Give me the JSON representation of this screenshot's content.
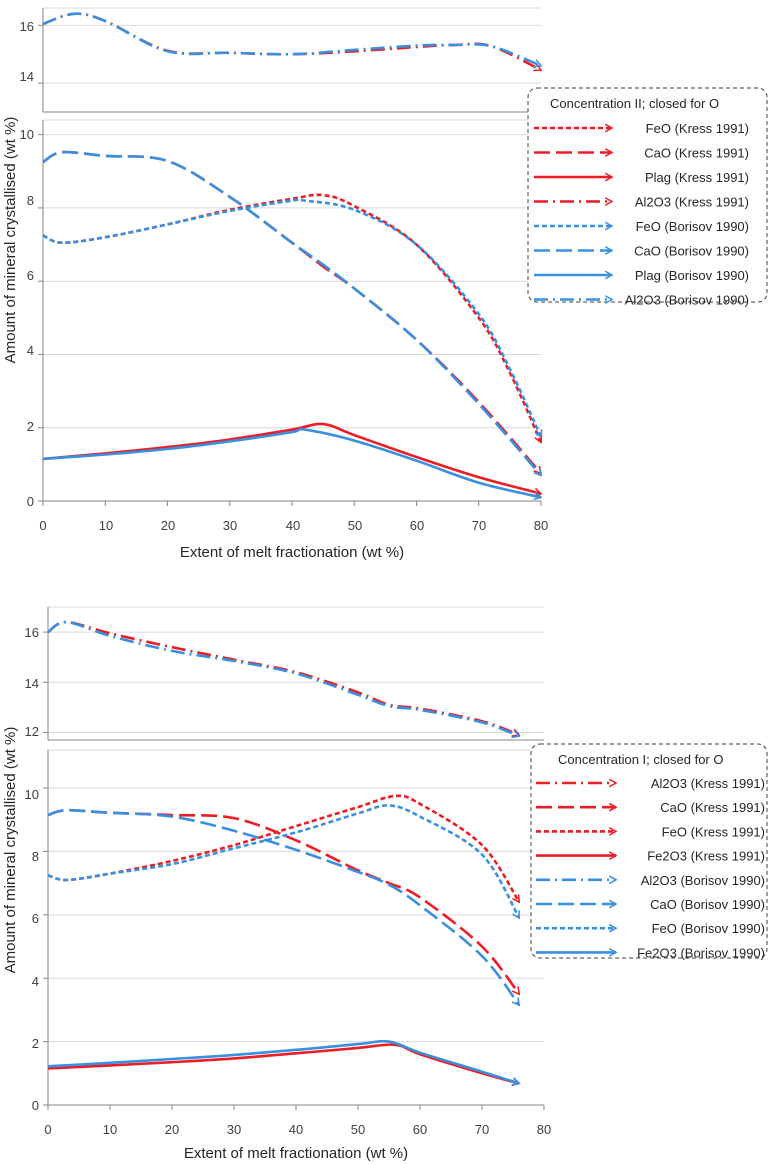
{
  "colors": {
    "kress": "#ee1c24",
    "borisov": "#3890e0",
    "grid": "#d9d9d9"
  },
  "chart_data": [
    {
      "type": "line",
      "ylabel": "Amount of mineral crystallised (wt %)",
      "xlabel": "Extent of melt fractionation (wt %)",
      "xlim": [
        0,
        80
      ],
      "x_ticks": [
        "0",
        "10",
        "20",
        "30",
        "40",
        "50",
        "60",
        "70",
        "80"
      ],
      "upper_panel": {
        "ylim": [
          13,
          16.6
        ],
        "y_ticks": [
          "14",
          "16"
        ]
      },
      "lower_panel": {
        "ylim": [
          0,
          10.4
        ],
        "y_ticks": [
          "0",
          "2",
          "4",
          "6",
          "8",
          "10"
        ]
      },
      "y_axis_break": true,
      "grid": true,
      "legend_position": "right",
      "legend": {
        "title": "Concentration II; closed  for O",
        "entries": [
          "FeO (Kress 1991)",
          "CaO (Kress 1991)",
          "Plag (Kress 1991)",
          "Al2O3 (Kress 1991)",
          "FeO (Borisov 1990)",
          "CaO (Borisov 1990)",
          "Plag (Borisov 1990)",
          "Al2O3 (Borisov 1990)"
        ]
      },
      "series": [
        {
          "name": "FeO (Kress 1991)",
          "color": "kress",
          "dash": "short",
          "panel": "lower",
          "x": [
            0,
            3,
            10,
            20,
            30,
            40,
            45,
            50,
            60,
            70,
            75,
            80
          ],
          "y": [
            7.25,
            7.05,
            7.2,
            7.55,
            7.95,
            8.25,
            8.35,
            8.05,
            7.0,
            5.0,
            3.5,
            1.6
          ]
        },
        {
          "name": "CaO (Kress 1991)",
          "color": "kress",
          "dash": "long",
          "panel": "lower",
          "x": [
            0,
            3,
            10,
            20,
            30,
            40,
            45,
            50,
            60,
            70,
            80
          ],
          "y": [
            9.25,
            9.52,
            9.42,
            9.28,
            8.3,
            7.05,
            6.4,
            5.8,
            4.4,
            2.7,
            0.75
          ]
        },
        {
          "name": "Plag (Kress 1991)",
          "color": "kress",
          "dash": "solid",
          "panel": "lower",
          "x": [
            0,
            10,
            20,
            30,
            40,
            45,
            50,
            60,
            70,
            80
          ],
          "y": [
            1.15,
            1.3,
            1.47,
            1.68,
            1.95,
            2.1,
            1.8,
            1.2,
            0.65,
            0.2
          ]
        },
        {
          "name": "Al2O3 (Kress 1991)",
          "color": "kress",
          "dash": "dashdot",
          "panel": "upper",
          "x": [
            0,
            5,
            10,
            20,
            30,
            40,
            50,
            60,
            66,
            72,
            80
          ],
          "y": [
            16.05,
            16.4,
            16.15,
            15.12,
            15.05,
            15.0,
            15.1,
            15.25,
            15.32,
            15.28,
            14.45
          ]
        },
        {
          "name": "FeO (Borisov 1990)",
          "color": "borisov",
          "dash": "short",
          "panel": "lower",
          "x": [
            0,
            3,
            10,
            20,
            30,
            40,
            42,
            50,
            60,
            70,
            75,
            80
          ],
          "y": [
            7.25,
            7.05,
            7.2,
            7.55,
            7.92,
            8.2,
            8.2,
            7.95,
            7.0,
            5.1,
            3.6,
            1.75
          ]
        },
        {
          "name": "CaO (Borisov 1990)",
          "color": "borisov",
          "dash": "long",
          "panel": "lower",
          "x": [
            0,
            3,
            10,
            20,
            30,
            40,
            45,
            50,
            60,
            70,
            80
          ],
          "y": [
            9.25,
            9.52,
            9.42,
            9.28,
            8.3,
            7.05,
            6.45,
            5.8,
            4.4,
            2.65,
            0.7
          ]
        },
        {
          "name": "Plag (Borisov 1990)",
          "color": "borisov",
          "dash": "solid",
          "panel": "lower",
          "x": [
            0,
            10,
            20,
            30,
            40,
            42,
            50,
            60,
            70,
            80
          ],
          "y": [
            1.15,
            1.27,
            1.42,
            1.63,
            1.88,
            1.95,
            1.65,
            1.1,
            0.5,
            0.1
          ]
        },
        {
          "name": "Al2O3 (Borisov 1990)",
          "color": "borisov",
          "dash": "dashdot",
          "panel": "upper",
          "x": [
            0,
            5,
            10,
            20,
            30,
            40,
            50,
            60,
            66,
            72,
            80
          ],
          "y": [
            16.05,
            16.4,
            16.15,
            15.1,
            15.05,
            15.0,
            15.15,
            15.3,
            15.32,
            15.28,
            14.6
          ]
        }
      ]
    },
    {
      "type": "line",
      "ylabel": "Amount of mineral crystallised (wt %)",
      "xlabel": "Extent of melt fractionation (wt %)",
      "xlim": [
        0,
        80
      ],
      "x_ticks": [
        "0",
        "10",
        "20",
        "30",
        "40",
        "50",
        "60",
        "70",
        "80"
      ],
      "upper_panel": {
        "ylim": [
          11.7,
          17
        ],
        "y_ticks": [
          "12",
          "14",
          "16"
        ]
      },
      "lower_panel": {
        "ylim": [
          0,
          11.2
        ],
        "y_ticks": [
          "0",
          "2",
          "4",
          "6",
          "8",
          "10"
        ]
      },
      "y_axis_break": true,
      "grid": true,
      "legend_position": "right",
      "legend": {
        "title": "Concentration I; closed for O",
        "entries": [
          "Al2O3 (Kress 1991)",
          "CaO (Kress 1991)",
          "FeO (Kress 1991)",
          "Fe2O3 (Kress 1991)",
          "Al2O3 (Borisov 1990)",
          "CaO (Borisov 1990)",
          "FeO (Borisov 1990)",
          "Fe2O3 (Borisov 1990)"
        ]
      },
      "series": [
        {
          "name": "Al2O3 (Kress 1991)",
          "color": "kress",
          "dash": "dashdot",
          "panel": "upper",
          "x": [
            0,
            3,
            10,
            20,
            30,
            40,
            50,
            55,
            60,
            70,
            76
          ],
          "y": [
            16.0,
            16.4,
            15.95,
            15.4,
            14.9,
            14.4,
            13.6,
            13.1,
            12.95,
            12.45,
            11.9
          ]
        },
        {
          "name": "CaO (Kress 1991)",
          "color": "kress",
          "dash": "long",
          "panel": "lower",
          "x": [
            0,
            3,
            10,
            20,
            30,
            40,
            50,
            55,
            60,
            70,
            76
          ],
          "y": [
            9.15,
            9.3,
            9.22,
            9.15,
            9.05,
            8.35,
            7.4,
            7.0,
            6.55,
            5.0,
            3.5
          ]
        },
        {
          "name": "FeO (Kress 1991)",
          "color": "kress",
          "dash": "short",
          "panel": "lower",
          "x": [
            0,
            3,
            10,
            20,
            30,
            40,
            50,
            56,
            60,
            70,
            76
          ],
          "y": [
            7.25,
            7.1,
            7.3,
            7.7,
            8.2,
            8.8,
            9.4,
            9.75,
            9.5,
            8.2,
            6.4
          ]
        },
        {
          "name": "Fe2O3 (Kress 1991)",
          "color": "kress",
          "dash": "solid",
          "panel": "lower",
          "x": [
            0,
            10,
            20,
            30,
            40,
            50,
            56,
            60,
            70,
            76
          ],
          "y": [
            1.15,
            1.25,
            1.35,
            1.47,
            1.63,
            1.8,
            1.9,
            1.6,
            1.0,
            0.68
          ]
        },
        {
          "name": "Al2O3 (Borisov 1990)",
          "color": "borisov",
          "dash": "dashdot",
          "panel": "upper",
          "x": [
            0,
            3,
            10,
            20,
            30,
            40,
            50,
            55,
            60,
            70,
            76
          ],
          "y": [
            16.0,
            16.4,
            15.85,
            15.25,
            14.85,
            14.35,
            13.5,
            13.05,
            12.9,
            12.4,
            11.85
          ]
        },
        {
          "name": "CaO (Borisov 1990)",
          "color": "borisov",
          "dash": "long",
          "panel": "lower",
          "x": [
            0,
            3,
            10,
            20,
            30,
            40,
            50,
            55,
            60,
            70,
            76
          ],
          "y": [
            9.15,
            9.3,
            9.22,
            9.1,
            8.65,
            8.05,
            7.35,
            6.95,
            6.3,
            4.7,
            3.15
          ]
        },
        {
          "name": "FeO (Borisov 1990)",
          "color": "borisov",
          "dash": "short",
          "panel": "lower",
          "x": [
            0,
            3,
            10,
            20,
            30,
            40,
            50,
            55,
            60,
            70,
            76
          ],
          "y": [
            7.25,
            7.1,
            7.3,
            7.6,
            8.1,
            8.6,
            9.2,
            9.45,
            9.1,
            7.9,
            5.9
          ]
        },
        {
          "name": "Fe2O3 (Borisov 1990)",
          "color": "borisov",
          "dash": "solid",
          "panel": "lower",
          "x": [
            0,
            10,
            20,
            30,
            40,
            50,
            55,
            60,
            70,
            76
          ],
          "y": [
            1.22,
            1.33,
            1.45,
            1.58,
            1.74,
            1.92,
            2.0,
            1.65,
            1.05,
            0.68
          ]
        }
      ]
    }
  ]
}
